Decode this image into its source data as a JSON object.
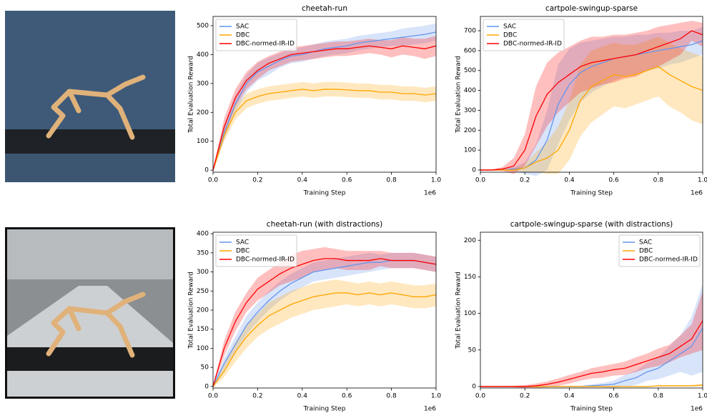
{
  "chart_data": [
    {
      "type": "line",
      "title": "cheetah-run",
      "x_label": "Training Step",
      "y_label": "Total Evaluation Reward",
      "x_offset_label": "1e6",
      "legend": "upper left",
      "x": [
        0,
        50000,
        100000,
        150000,
        200000,
        250000,
        300000,
        350000,
        400000,
        450000,
        500000,
        550000,
        600000,
        650000,
        700000,
        750000,
        800000,
        850000,
        900000,
        950000,
        1000000
      ],
      "xlim": [
        0,
        1000000
      ],
      "xticks": [
        {
          "value": 0,
          "label": "0.0"
        },
        {
          "value": 200000,
          "label": "0.2"
        },
        {
          "value": 400000,
          "label": "0.4"
        },
        {
          "value": 600000,
          "label": "0.6"
        },
        {
          "value": 800000,
          "label": "0.8"
        },
        {
          "value": 1000000,
          "label": "1.0"
        }
      ],
      "ylim": [
        -7,
        532
      ],
      "yticks": [
        0,
        100,
        200,
        300,
        400,
        500
      ],
      "series": [
        {
          "name": "SAC",
          "color": "#6495ed",
          "values": [
            0,
            130,
            230,
            300,
            340,
            360,
            380,
            395,
            400,
            410,
            420,
            425,
            430,
            440,
            445,
            450,
            455,
            460,
            465,
            470,
            478
          ],
          "spread": [
            5,
            25,
            30,
            30,
            30,
            30,
            25,
            25,
            25,
            25,
            25,
            25,
            25,
            25,
            25,
            25,
            25,
            30,
            30,
            30,
            30
          ]
        },
        {
          "name": "DBC",
          "color": "#ffa500",
          "values": [
            0,
            120,
            200,
            240,
            255,
            265,
            270,
            275,
            280,
            275,
            280,
            280,
            278,
            275,
            275,
            270,
            270,
            265,
            265,
            260,
            265
          ],
          "spread": [
            5,
            20,
            25,
            25,
            25,
            25,
            25,
            25,
            25,
            25,
            25,
            25,
            25,
            25,
            25,
            25,
            25,
            25,
            25,
            25,
            25
          ]
        },
        {
          "name": "DBC-normed-IR-ID",
          "color": "#ff0000",
          "values": [
            0,
            150,
            250,
            310,
            345,
            370,
            385,
            400,
            405,
            410,
            415,
            420,
            420,
            425,
            430,
            425,
            420,
            430,
            425,
            420,
            430
          ],
          "spread": [
            5,
            30,
            30,
            30,
            30,
            25,
            25,
            25,
            25,
            25,
            25,
            25,
            25,
            25,
            25,
            25,
            30,
            30,
            30,
            35,
            35
          ]
        }
      ]
    },
    {
      "type": "line",
      "title": "cartpole-swingup-sparse",
      "x_label": "Training Step",
      "y_label": "Total Evaluation Reward",
      "x_offset_label": "1e6",
      "legend": "upper left",
      "x": [
        0,
        50000,
        100000,
        150000,
        200000,
        250000,
        300000,
        350000,
        400000,
        450000,
        500000,
        550000,
        600000,
        650000,
        700000,
        750000,
        800000,
        850000,
        900000,
        950000,
        1000000
      ],
      "xlim": [
        0,
        1000000
      ],
      "xticks": [
        {
          "value": 0,
          "label": "0.0"
        },
        {
          "value": 200000,
          "label": "0.2"
        },
        {
          "value": 400000,
          "label": "0.4"
        },
        {
          "value": 600000,
          "label": "0.6"
        },
        {
          "value": 800000,
          "label": "0.8"
        },
        {
          "value": 1000000,
          "label": "1.0"
        }
      ],
      "ylim": [
        -11,
        772
      ],
      "yticks": [
        0,
        100,
        200,
        300,
        400,
        500,
        600,
        700
      ],
      "series": [
        {
          "name": "SAC",
          "color": "#6495ed",
          "values": [
            0,
            0,
            0,
            5,
            10,
            50,
            150,
            330,
            430,
            490,
            520,
            540,
            560,
            570,
            580,
            590,
            600,
            610,
            620,
            630,
            650
          ],
          "spread": [
            2,
            2,
            3,
            10,
            30,
            80,
            150,
            200,
            180,
            150,
            130,
            120,
            110,
            100,
            100,
            90,
            90,
            80,
            80,
            70,
            70
          ]
        },
        {
          "name": "DBC",
          "color": "#ffa500",
          "values": [
            0,
            0,
            0,
            0,
            10,
            40,
            60,
            100,
            200,
            350,
            420,
            450,
            480,
            470,
            480,
            500,
            520,
            480,
            450,
            420,
            400
          ],
          "spread": [
            1,
            1,
            2,
            5,
            20,
            50,
            80,
            120,
            150,
            180,
            180,
            170,
            160,
            160,
            150,
            150,
            150,
            160,
            160,
            170,
            170
          ]
        },
        {
          "name": "DBC-normed-IR-ID",
          "color": "#ff0000",
          "values": [
            0,
            0,
            5,
            20,
            100,
            270,
            380,
            440,
            480,
            520,
            540,
            550,
            560,
            570,
            580,
            600,
            620,
            640,
            660,
            700,
            680
          ],
          "spread": [
            2,
            3,
            10,
            40,
            80,
            150,
            160,
            150,
            140,
            130,
            130,
            120,
            120,
            110,
            110,
            100,
            100,
            90,
            80,
            50,
            60
          ]
        }
      ]
    },
    {
      "type": "line",
      "title": "cheetah-run (with distractions)",
      "x_label": "Training Step",
      "y_label": "Total Evaluation Reward",
      "x_offset_label": "1e6",
      "legend": "upper left",
      "x": [
        0,
        50000,
        100000,
        150000,
        200000,
        250000,
        300000,
        350000,
        400000,
        450000,
        500000,
        550000,
        600000,
        650000,
        700000,
        750000,
        800000,
        850000,
        900000,
        950000,
        1000000
      ],
      "xlim": [
        0,
        1000000
      ],
      "xticks": [
        {
          "value": 0,
          "label": "0.0"
        },
        {
          "value": 200000,
          "label": "0.2"
        },
        {
          "value": 400000,
          "label": "0.4"
        },
        {
          "value": 600000,
          "label": "0.6"
        },
        {
          "value": 800000,
          "label": "0.8"
        },
        {
          "value": 1000000,
          "label": "1.0"
        }
      ],
      "ylim": [
        -4,
        404
      ],
      "yticks": [
        0,
        50,
        100,
        150,
        200,
        250,
        300,
        350,
        400
      ],
      "series": [
        {
          "name": "SAC",
          "color": "#6495ed",
          "values": [
            0,
            60,
            110,
            160,
            195,
            225,
            250,
            270,
            285,
            300,
            305,
            310,
            315,
            320,
            325,
            325,
            330,
            330,
            330,
            325,
            320
          ],
          "spread": [
            3,
            15,
            20,
            25,
            25,
            25,
            25,
            25,
            25,
            25,
            25,
            25,
            25,
            25,
            25,
            20,
            20,
            20,
            20,
            20,
            20
          ]
        },
        {
          "name": "DBC",
          "color": "#ffa500",
          "values": [
            0,
            40,
            90,
            130,
            160,
            185,
            200,
            215,
            225,
            235,
            240,
            245,
            245,
            240,
            245,
            240,
            245,
            240,
            235,
            235,
            240
          ],
          "spread": [
            3,
            15,
            25,
            30,
            30,
            35,
            35,
            35,
            35,
            35,
            35,
            35,
            30,
            30,
            30,
            30,
            30,
            30,
            30,
            30,
            30
          ]
        },
        {
          "name": "DBC-normed-IR-ID",
          "color": "#ff0000",
          "values": [
            0,
            100,
            170,
            220,
            255,
            275,
            295,
            310,
            320,
            330,
            335,
            335,
            330,
            330,
            330,
            335,
            330,
            330,
            330,
            325,
            320
          ],
          "spread": [
            3,
            20,
            25,
            25,
            30,
            30,
            30,
            35,
            35,
            30,
            30,
            25,
            25,
            25,
            25,
            20,
            20,
            20,
            20,
            20,
            20
          ]
        }
      ]
    },
    {
      "type": "line",
      "title": "cartpole-swingup-sparse (with distractions)",
      "x_label": "Training Step",
      "y_label": "Total Evaluation Reward",
      "x_offset_label": "1e6",
      "legend": "upper right",
      "x": [
        0,
        50000,
        100000,
        150000,
        200000,
        250000,
        300000,
        350000,
        400000,
        450000,
        500000,
        550000,
        600000,
        650000,
        700000,
        750000,
        800000,
        850000,
        900000,
        950000,
        1000000
      ],
      "xlim": [
        0,
        1000000
      ],
      "xticks": [
        {
          "value": 0,
          "label": "0.0"
        },
        {
          "value": 200000,
          "label": "0.2"
        },
        {
          "value": 400000,
          "label": "0.4"
        },
        {
          "value": 600000,
          "label": "0.6"
        },
        {
          "value": 800000,
          "label": "0.8"
        },
        {
          "value": 1000000,
          "label": "1.0"
        }
      ],
      "ylim": [
        -2,
        211
      ],
      "yticks": [
        0,
        50,
        100,
        150,
        200
      ],
      "series": [
        {
          "name": "SAC",
          "color": "#6495ed",
          "values": [
            0,
            0,
            0,
            0,
            0,
            0,
            0,
            0,
            0,
            0,
            1,
            2,
            3,
            8,
            12,
            20,
            25,
            35,
            45,
            55,
            80
          ],
          "spread": [
            0,
            0,
            0,
            0,
            0,
            0,
            0,
            0,
            1,
            1,
            2,
            3,
            5,
            8,
            10,
            12,
            15,
            20,
            25,
            40,
            60
          ]
        },
        {
          "name": "DBC",
          "color": "#ffa500",
          "values": [
            0,
            0,
            0,
            0,
            0,
            0,
            0,
            0,
            0,
            0,
            0,
            0,
            0,
            0,
            0,
            0,
            1,
            1,
            1,
            1,
            2
          ],
          "spread": [
            0,
            0,
            0,
            0,
            0,
            0,
            0,
            0,
            0,
            0,
            0,
            0,
            0,
            0,
            0,
            0,
            1,
            1,
            1,
            1,
            2
          ]
        },
        {
          "name": "DBC-normed-IR-ID",
          "color": "#ff0000",
          "values": [
            0,
            0,
            0,
            0,
            0,
            1,
            3,
            6,
            10,
            14,
            18,
            20,
            23,
            25,
            30,
            35,
            40,
            45,
            55,
            65,
            90
          ],
          "spread": [
            0,
            0,
            0,
            1,
            2,
            3,
            4,
            5,
            6,
            6,
            7,
            8,
            8,
            9,
            10,
            10,
            12,
            12,
            15,
            20,
            40
          ]
        }
      ]
    }
  ]
}
